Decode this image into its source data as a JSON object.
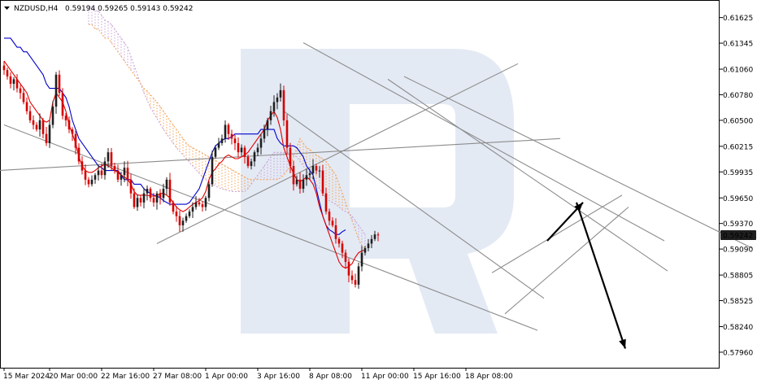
{
  "header": {
    "symbol": "NZDUSD,H4",
    "ohlc": "0.59194 0.59265 0.59143 0.59242"
  },
  "current_price_label": "0.59242",
  "colors": {
    "bull": "#1f1f1f",
    "bear": "#d40000",
    "tenkan": "#e00000",
    "kijun": "#0000cc",
    "cloud_orange": "#f4a052",
    "cloud_violet": "#c8a0d8",
    "trendline": "#8c8c8c",
    "arrow": "#000000",
    "price_box": "#1f1f1f",
    "watermark": "#dfe6f2"
  },
  "chart_data": {
    "type": "candlestick",
    "ylim": [
      0.5779,
      0.618
    ],
    "y_ticks": [
      "0.61625",
      "0.61345",
      "0.61060",
      "0.60780",
      "0.60500",
      "0.60215",
      "0.59935",
      "0.59650",
      "0.59370",
      "0.59090",
      "0.58805",
      "0.58525",
      "0.58240",
      "0.57960"
    ],
    "x_ticks": [
      "15 Mar 2024",
      "20 Mar 00:00",
      "22 Mar 16:00",
      "27 Mar 08:00",
      "1 Apr 00:00",
      "3 Apr 16:00",
      "8 Apr 08:00",
      "11 Apr 00:00",
      "15 Apr 16:00",
      "18 Apr 08:00"
    ],
    "x_tick_index": [
      0,
      14,
      30,
      46,
      62,
      78,
      94,
      110,
      126,
      142
    ],
    "closes": [
      0.6105,
      0.6098,
      0.609,
      0.6095,
      0.6085,
      0.608,
      0.607,
      0.606,
      0.605,
      0.6045,
      0.604,
      0.605,
      0.6035,
      0.6025,
      0.6045,
      0.6065,
      0.61,
      0.608,
      0.6055,
      0.605,
      0.604,
      0.6035,
      0.602,
      0.6005,
      0.5995,
      0.5985,
      0.598,
      0.5985,
      0.599,
      0.5995,
      0.599,
      0.6005,
      0.6015,
      0.6,
      0.5995,
      0.5985,
      0.599,
      0.5998,
      0.5985,
      0.597,
      0.5955,
      0.5965,
      0.596,
      0.597,
      0.5975,
      0.5965,
      0.596,
      0.597,
      0.5965,
      0.5975,
      0.5985,
      0.596,
      0.595,
      0.5945,
      0.5935,
      0.594,
      0.5945,
      0.595,
      0.5955,
      0.596,
      0.5958,
      0.5955,
      0.5965,
      0.598,
      0.601,
      0.602,
      0.6025,
      0.603,
      0.6045,
      0.6035,
      0.603,
      0.6025,
      0.6015,
      0.602,
      0.601,
      0.6,
      0.6005,
      0.6015,
      0.602,
      0.603,
      0.604,
      0.605,
      0.606,
      0.607,
      0.6075,
      0.6083,
      0.605,
      0.602,
      0.6,
      0.598,
      0.5985,
      0.5975,
      0.5985,
      0.599,
      0.5992,
      0.6,
      0.5995,
      0.5995,
      0.597,
      0.595,
      0.594,
      0.5935,
      0.592,
      0.5915,
      0.5905,
      0.5895,
      0.588,
      0.5875,
      0.587,
      0.589,
      0.5905,
      0.591,
      0.5915,
      0.592,
      0.5925,
      0.5924
    ],
    "ichimoku": {
      "tenkan": [
        0.6115,
        0.611,
        0.6105,
        0.61,
        0.6095,
        0.609,
        0.6085,
        0.608,
        0.607,
        0.6065,
        0.606,
        0.6055,
        0.605,
        0.6048,
        0.605,
        0.607,
        0.608,
        0.6075,
        0.607,
        0.606,
        0.6045,
        0.6035,
        0.6025,
        0.601,
        0.6,
        0.5995,
        0.5993,
        0.5993,
        0.5995,
        0.5998,
        0.6,
        0.6002,
        0.6,
        0.5998,
        0.5995,
        0.5993,
        0.599,
        0.5988,
        0.5985,
        0.598,
        0.5972,
        0.5968,
        0.5968,
        0.5968,
        0.5968,
        0.5967,
        0.5967,
        0.5967,
        0.597,
        0.597,
        0.5968,
        0.5965,
        0.596,
        0.5955,
        0.5952,
        0.595,
        0.5952,
        0.5955,
        0.5958,
        0.596,
        0.5962,
        0.5965,
        0.5972,
        0.5985,
        0.5993,
        0.5997,
        0.6002,
        0.6005,
        0.601,
        0.6012,
        0.601,
        0.6008,
        0.6008,
        0.601,
        0.6012,
        0.6015,
        0.602,
        0.6025,
        0.603,
        0.6035,
        0.604,
        0.605,
        0.6055,
        0.606,
        0.6053,
        0.604,
        0.602,
        0.601,
        0.6,
        0.5992,
        0.5985,
        0.5983,
        0.5985,
        0.5988,
        0.5985,
        0.598,
        0.597,
        0.5955,
        0.5945,
        0.5935,
        0.5925,
        0.5915,
        0.5905,
        0.5895,
        0.589,
        0.5888,
        0.589,
        0.5893,
        0.59,
        0.5905,
        0.5907,
        0.5908
      ],
      "kijun": [
        0.614,
        0.614,
        0.614,
        0.6135,
        0.613,
        0.613,
        0.6125,
        0.6125,
        0.612,
        0.6115,
        0.611,
        0.6105,
        0.61,
        0.609,
        0.6085,
        0.6085,
        0.6085,
        0.6085,
        0.608,
        0.6075,
        0.6065,
        0.605,
        0.604,
        0.603,
        0.6025,
        0.602,
        0.6015,
        0.601,
        0.6005,
        0.6,
        0.5998,
        0.5995,
        0.5995,
        0.5995,
        0.5995,
        0.5995,
        0.599,
        0.5985,
        0.5985,
        0.5985,
        0.598,
        0.598,
        0.598,
        0.5975,
        0.5972,
        0.597,
        0.5968,
        0.5967,
        0.5965,
        0.5962,
        0.596,
        0.5958,
        0.5958,
        0.5958,
        0.5958,
        0.5958,
        0.5958,
        0.596,
        0.5965,
        0.597,
        0.5975,
        0.5985,
        0.5995,
        0.6005,
        0.6015,
        0.6022,
        0.6025,
        0.6028,
        0.603,
        0.603,
        0.6032,
        0.6035,
        0.6035,
        0.6035,
        0.6035,
        0.6035,
        0.6035,
        0.6035,
        0.6035,
        0.604,
        0.604,
        0.604,
        0.604,
        0.604,
        0.603,
        0.6025,
        0.6022,
        0.6022,
        0.6022,
        0.6022,
        0.602,
        0.6015,
        0.601,
        0.6,
        0.5995,
        0.599,
        0.5975,
        0.596,
        0.5945,
        0.5935,
        0.593,
        0.5928,
        0.5925,
        0.5925,
        0.5928,
        0.593
      ],
      "span_a": [
        0.6155,
        0.6155,
        0.615,
        0.615,
        0.6145,
        0.614,
        0.614,
        0.6135,
        0.613,
        0.6125,
        0.612,
        0.6115,
        0.611,
        0.6105,
        0.61,
        0.6095,
        0.609,
        0.6085,
        0.6082,
        0.6078,
        0.6074,
        0.607,
        0.6065,
        0.606,
        0.6055,
        0.605,
        0.6045,
        0.604,
        0.6035,
        0.603,
        0.6025,
        0.6022,
        0.602,
        0.6018,
        0.6016,
        0.6014,
        0.6012,
        0.601,
        0.6008,
        0.6006,
        0.6004,
        0.6002,
        0.6,
        0.5998,
        0.5996,
        0.5994,
        0.5992,
        0.599,
        0.5988,
        0.5986,
        0.5985,
        0.5985,
        0.5985,
        0.5985,
        0.5985,
        0.5985,
        0.5985,
        0.5985,
        0.5985,
        0.5987,
        0.599,
        0.5995,
        0.6,
        0.601,
        0.602,
        0.603,
        0.6025,
        0.602,
        0.6018,
        0.6015,
        0.6012,
        0.601,
        0.6008,
        0.6005,
        0.6,
        0.5995,
        0.599,
        0.598,
        0.597,
        0.596,
        0.595,
        0.594,
        0.593,
        0.592,
        0.5912,
        0.591
      ],
      "span_b": [
        0.6175,
        0.6175,
        0.617,
        0.617,
        0.6165,
        0.616,
        0.6158,
        0.6155,
        0.615,
        0.6145,
        0.614,
        0.6135,
        0.613,
        0.612,
        0.611,
        0.61,
        0.609,
        0.608,
        0.6072,
        0.6064,
        0.6058,
        0.6052,
        0.6046,
        0.604,
        0.6035,
        0.603,
        0.6025,
        0.602,
        0.6016,
        0.6012,
        0.6008,
        0.6004,
        0.6,
        0.5996,
        0.5992,
        0.5988,
        0.5985,
        0.5982,
        0.598,
        0.5978,
        0.5976,
        0.5975,
        0.5974,
        0.5973,
        0.5972,
        0.5972,
        0.5972,
        0.5972,
        0.5972,
        0.5975,
        0.598,
        0.5985,
        0.599,
        0.5995,
        0.6,
        0.6005,
        0.601,
        0.6015,
        0.6015,
        0.6015,
        0.6015,
        0.6015,
        0.6015,
        0.6012,
        0.601,
        0.6005,
        0.6,
        0.5995,
        0.599,
        0.5985,
        0.598,
        0.5975,
        0.597,
        0.5965,
        0.5962,
        0.596,
        0.5958,
        0.5955,
        0.5952,
        0.595,
        0.5948,
        0.5945,
        0.594,
        0.5935,
        0.593,
        0.5925
      ]
    },
    "trendlines": [
      {
        "from": [
          0,
          0.6045
        ],
        "to": [
          164,
          0.582
        ]
      },
      {
        "from": [
          -2,
          0.5995
        ],
        "to": [
          171,
          0.603
        ]
      },
      {
        "from": [
          47,
          0.5915
        ],
        "to": [
          158,
          0.6112
        ]
      },
      {
        "from": [
          92,
          0.6135
        ],
        "to": [
          203,
          0.5918
        ]
      },
      {
        "from": [
          123,
          0.6098
        ],
        "to": [
          230,
          0.591
        ]
      },
      {
        "from": [
          86,
          0.606
        ],
        "to": [
          166,
          0.5855
        ]
      },
      {
        "from": [
          118,
          0.6095
        ],
        "to": [
          204,
          0.5885
        ]
      },
      {
        "from": [
          150,
          0.5883
        ],
        "to": [
          190,
          0.5968
        ]
      },
      {
        "from": [
          154,
          0.5838
        ],
        "to": [
          192,
          0.5955
        ]
      }
    ],
    "arrows": [
      {
        "from": [
          167,
          0.5918
        ],
        "to": [
          178,
          0.596
        ]
      },
      {
        "from": [
          176,
          0.596
        ],
        "to": [
          191,
          0.58
        ]
      }
    ]
  }
}
